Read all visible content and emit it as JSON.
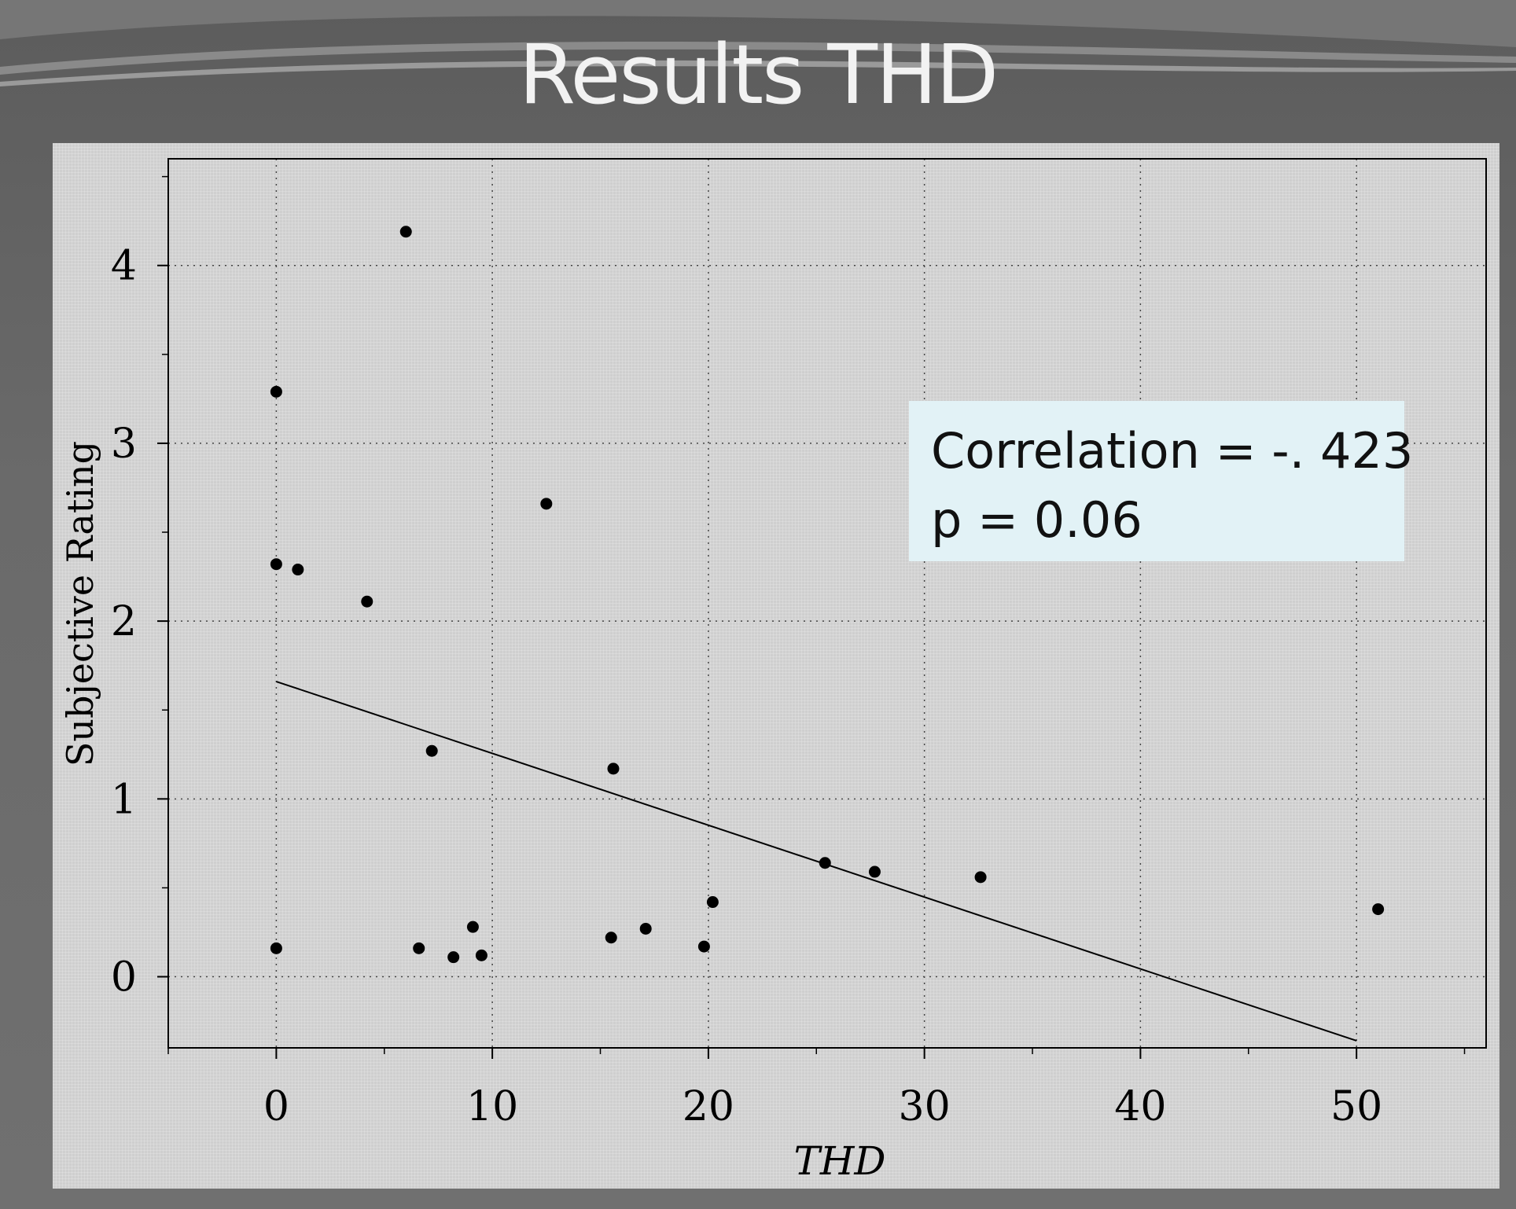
{
  "slide": {
    "title": "Results THD"
  },
  "annotation": {
    "line1": "Correlation = -. 423",
    "line2": "p = 0.06"
  },
  "chart_data": {
    "type": "scatter",
    "title": "",
    "xlabel": "THD",
    "ylabel": "Subjective Rating",
    "xlim": [
      -5,
      56
    ],
    "ylim": [
      -0.4,
      4.6
    ],
    "xticks": [
      0,
      10,
      20,
      30,
      40,
      50
    ],
    "yticks": [
      0,
      1,
      2,
      3,
      4
    ],
    "grid": true,
    "points": [
      {
        "x": 0.0,
        "y": 3.29
      },
      {
        "x": 0.0,
        "y": 2.32
      },
      {
        "x": 0.0,
        "y": 0.16
      },
      {
        "x": 1.0,
        "y": 2.29
      },
      {
        "x": 4.2,
        "y": 2.11
      },
      {
        "x": 6.0,
        "y": 4.19
      },
      {
        "x": 6.6,
        "y": 0.16
      },
      {
        "x": 7.2,
        "y": 1.27
      },
      {
        "x": 8.2,
        "y": 0.11
      },
      {
        "x": 9.1,
        "y": 0.28
      },
      {
        "x": 9.5,
        "y": 0.12
      },
      {
        "x": 12.5,
        "y": 2.66
      },
      {
        "x": 15.5,
        "y": 0.22
      },
      {
        "x": 15.6,
        "y": 1.17
      },
      {
        "x": 17.1,
        "y": 0.27
      },
      {
        "x": 19.8,
        "y": 0.17
      },
      {
        "x": 20.2,
        "y": 0.42
      },
      {
        "x": 25.4,
        "y": 0.64
      },
      {
        "x": 27.7,
        "y": 0.59
      },
      {
        "x": 32.6,
        "y": 0.56
      },
      {
        "x": 51.0,
        "y": 0.38
      }
    ],
    "fit_line": {
      "x": [
        0,
        50
      ],
      "y": [
        1.66,
        -0.36
      ]
    }
  }
}
